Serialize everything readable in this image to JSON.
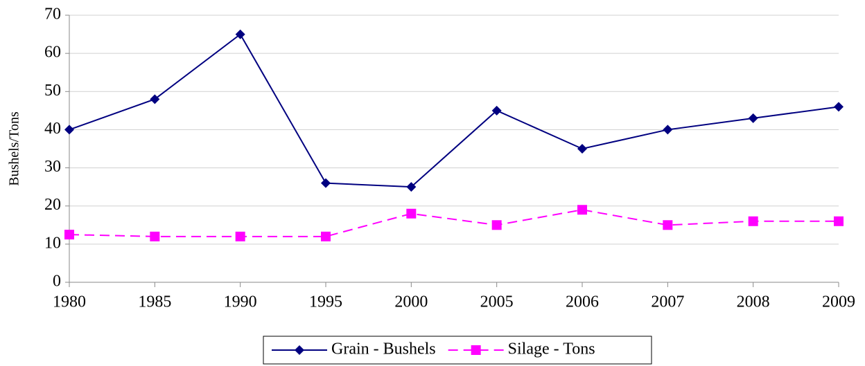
{
  "chart_data": {
    "type": "line",
    "y_label": "Bushels/Tons",
    "categories": [
      "1980",
      "1985",
      "1990",
      "1995",
      "2000",
      "2005",
      "2006",
      "2007",
      "2008",
      "2009"
    ],
    "series": [
      {
        "name": "Grain - Bushels",
        "color": "#000080",
        "marker": "diamond",
        "dash": false,
        "values": [
          40,
          48,
          65,
          26,
          25,
          45,
          35,
          40,
          43,
          46
        ]
      },
      {
        "name": "Silage - Tons",
        "color": "#ff00ff",
        "marker": "square",
        "dash": true,
        "values": [
          12.5,
          12,
          12,
          12,
          18,
          15,
          19,
          15,
          16,
          16
        ]
      }
    ],
    "ylim": [
      0,
      70
    ],
    "yticks": [
      0,
      10,
      20,
      30,
      40,
      50,
      60,
      70
    ],
    "grid": true,
    "legend": "bottom"
  }
}
